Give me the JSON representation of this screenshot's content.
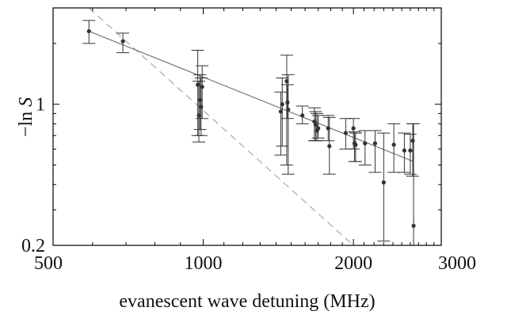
{
  "chart_data": {
    "type": "scatter",
    "title": "",
    "xlabel": "evanescent wave detuning (MHz)",
    "ylabel": {
      "prefix": "−ln ",
      "symbol": "S"
    },
    "xscale": "log",
    "yscale": "log",
    "xlim": [
      500,
      3000
    ],
    "ylim": [
      0.2,
      3.0
    ],
    "grid": false,
    "legend": "none",
    "x_ticks": [
      500,
      1000,
      2000,
      3000
    ],
    "x_tick_labels": [
      "500",
      "1000",
      "2000",
      "3000"
    ],
    "y_ticks": [
      0.2,
      1
    ],
    "y_tick_labels": [
      "0.2",
      "1"
    ],
    "colors": {
      "points": "#333333",
      "fit": "#777777",
      "reference": "#aaaaaa",
      "axes": "#000000"
    },
    "series": [
      {
        "type": "errorbar",
        "points": [
          {
            "x": 590,
            "y": 2.3,
            "lo": 2.0,
            "hi": 2.6
          },
          {
            "x": 690,
            "y": 2.05,
            "lo": 1.8,
            "hi": 2.25
          },
          {
            "x": 975,
            "y": 1.25,
            "lo": 0.7,
            "hi": 1.85
          },
          {
            "x": 980,
            "y": 0.88,
            "lo": 0.65,
            "hi": 1.3
          },
          {
            "x": 985,
            "y": 1.05,
            "lo": 0.75,
            "hi": 1.4
          },
          {
            "x": 990,
            "y": 0.97,
            "lo": 0.7,
            "hi": 1.35
          },
          {
            "x": 995,
            "y": 1.22,
            "lo": 0.85,
            "hi": 1.55
          },
          {
            "x": 1430,
            "y": 0.92,
            "lo": 0.56,
            "hi": 1.15
          },
          {
            "x": 1440,
            "y": 1.0,
            "lo": 0.62,
            "hi": 1.35
          },
          {
            "x": 1470,
            "y": 1.3,
            "lo": 0.5,
            "hi": 1.75
          },
          {
            "x": 1475,
            "y": 1.02,
            "lo": 0.85,
            "hi": 1.25
          },
          {
            "x": 1480,
            "y": 0.94,
            "lo": 0.45,
            "hi": 1.4
          },
          {
            "x": 1580,
            "y": 0.88,
            "lo": 0.8,
            "hi": 0.98
          },
          {
            "x": 1670,
            "y": 0.82,
            "lo": 0.66,
            "hi": 0.96
          },
          {
            "x": 1680,
            "y": 0.79,
            "lo": 0.66,
            "hi": 0.92
          },
          {
            "x": 1690,
            "y": 0.74,
            "lo": 0.66,
            "hi": 0.9
          },
          {
            "x": 1700,
            "y": 0.76,
            "lo": 0.68,
            "hi": 0.88
          },
          {
            "x": 1780,
            "y": 0.76,
            "lo": 0.66,
            "hi": 0.88
          },
          {
            "x": 1790,
            "y": 0.62,
            "lo": 0.45,
            "hi": 0.86
          },
          {
            "x": 1930,
            "y": 0.72,
            "lo": 0.6,
            "hi": 0.85
          },
          {
            "x": 2000,
            "y": 0.76,
            "lo": 0.6,
            "hi": 0.85
          },
          {
            "x": 2010,
            "y": 0.64,
            "lo": 0.52,
            "hi": 0.73
          },
          {
            "x": 2020,
            "y": 0.63,
            "lo": 0.52,
            "hi": 0.72
          },
          {
            "x": 2110,
            "y": 0.64,
            "lo": 0.5,
            "hi": 0.74
          },
          {
            "x": 2210,
            "y": 0.64,
            "lo": 0.46,
            "hi": 0.74
          },
          {
            "x": 2300,
            "y": 0.41,
            "lo": 0.21,
            "hi": 0.72
          },
          {
            "x": 2410,
            "y": 0.63,
            "lo": 0.46,
            "hi": 0.8
          },
          {
            "x": 2530,
            "y": 0.59,
            "lo": 0.46,
            "hi": 0.72
          },
          {
            "x": 2600,
            "y": 0.59,
            "lo": 0.45,
            "hi": 0.71
          },
          {
            "x": 2630,
            "y": 0.66,
            "lo": 0.44,
            "hi": 0.8
          },
          {
            "x": 2640,
            "y": 0.25,
            "lo": 0.19,
            "hi": 0.8
          }
        ]
      }
    ],
    "fit_line": {
      "style": "solid",
      "points": [
        [
          590,
          2.3
        ],
        [
          2640,
          0.52
        ]
      ]
    },
    "reference_line": {
      "style": "dashed",
      "points": [
        [
          590,
          3.0
        ],
        [
          2000,
          0.2
        ]
      ]
    }
  }
}
